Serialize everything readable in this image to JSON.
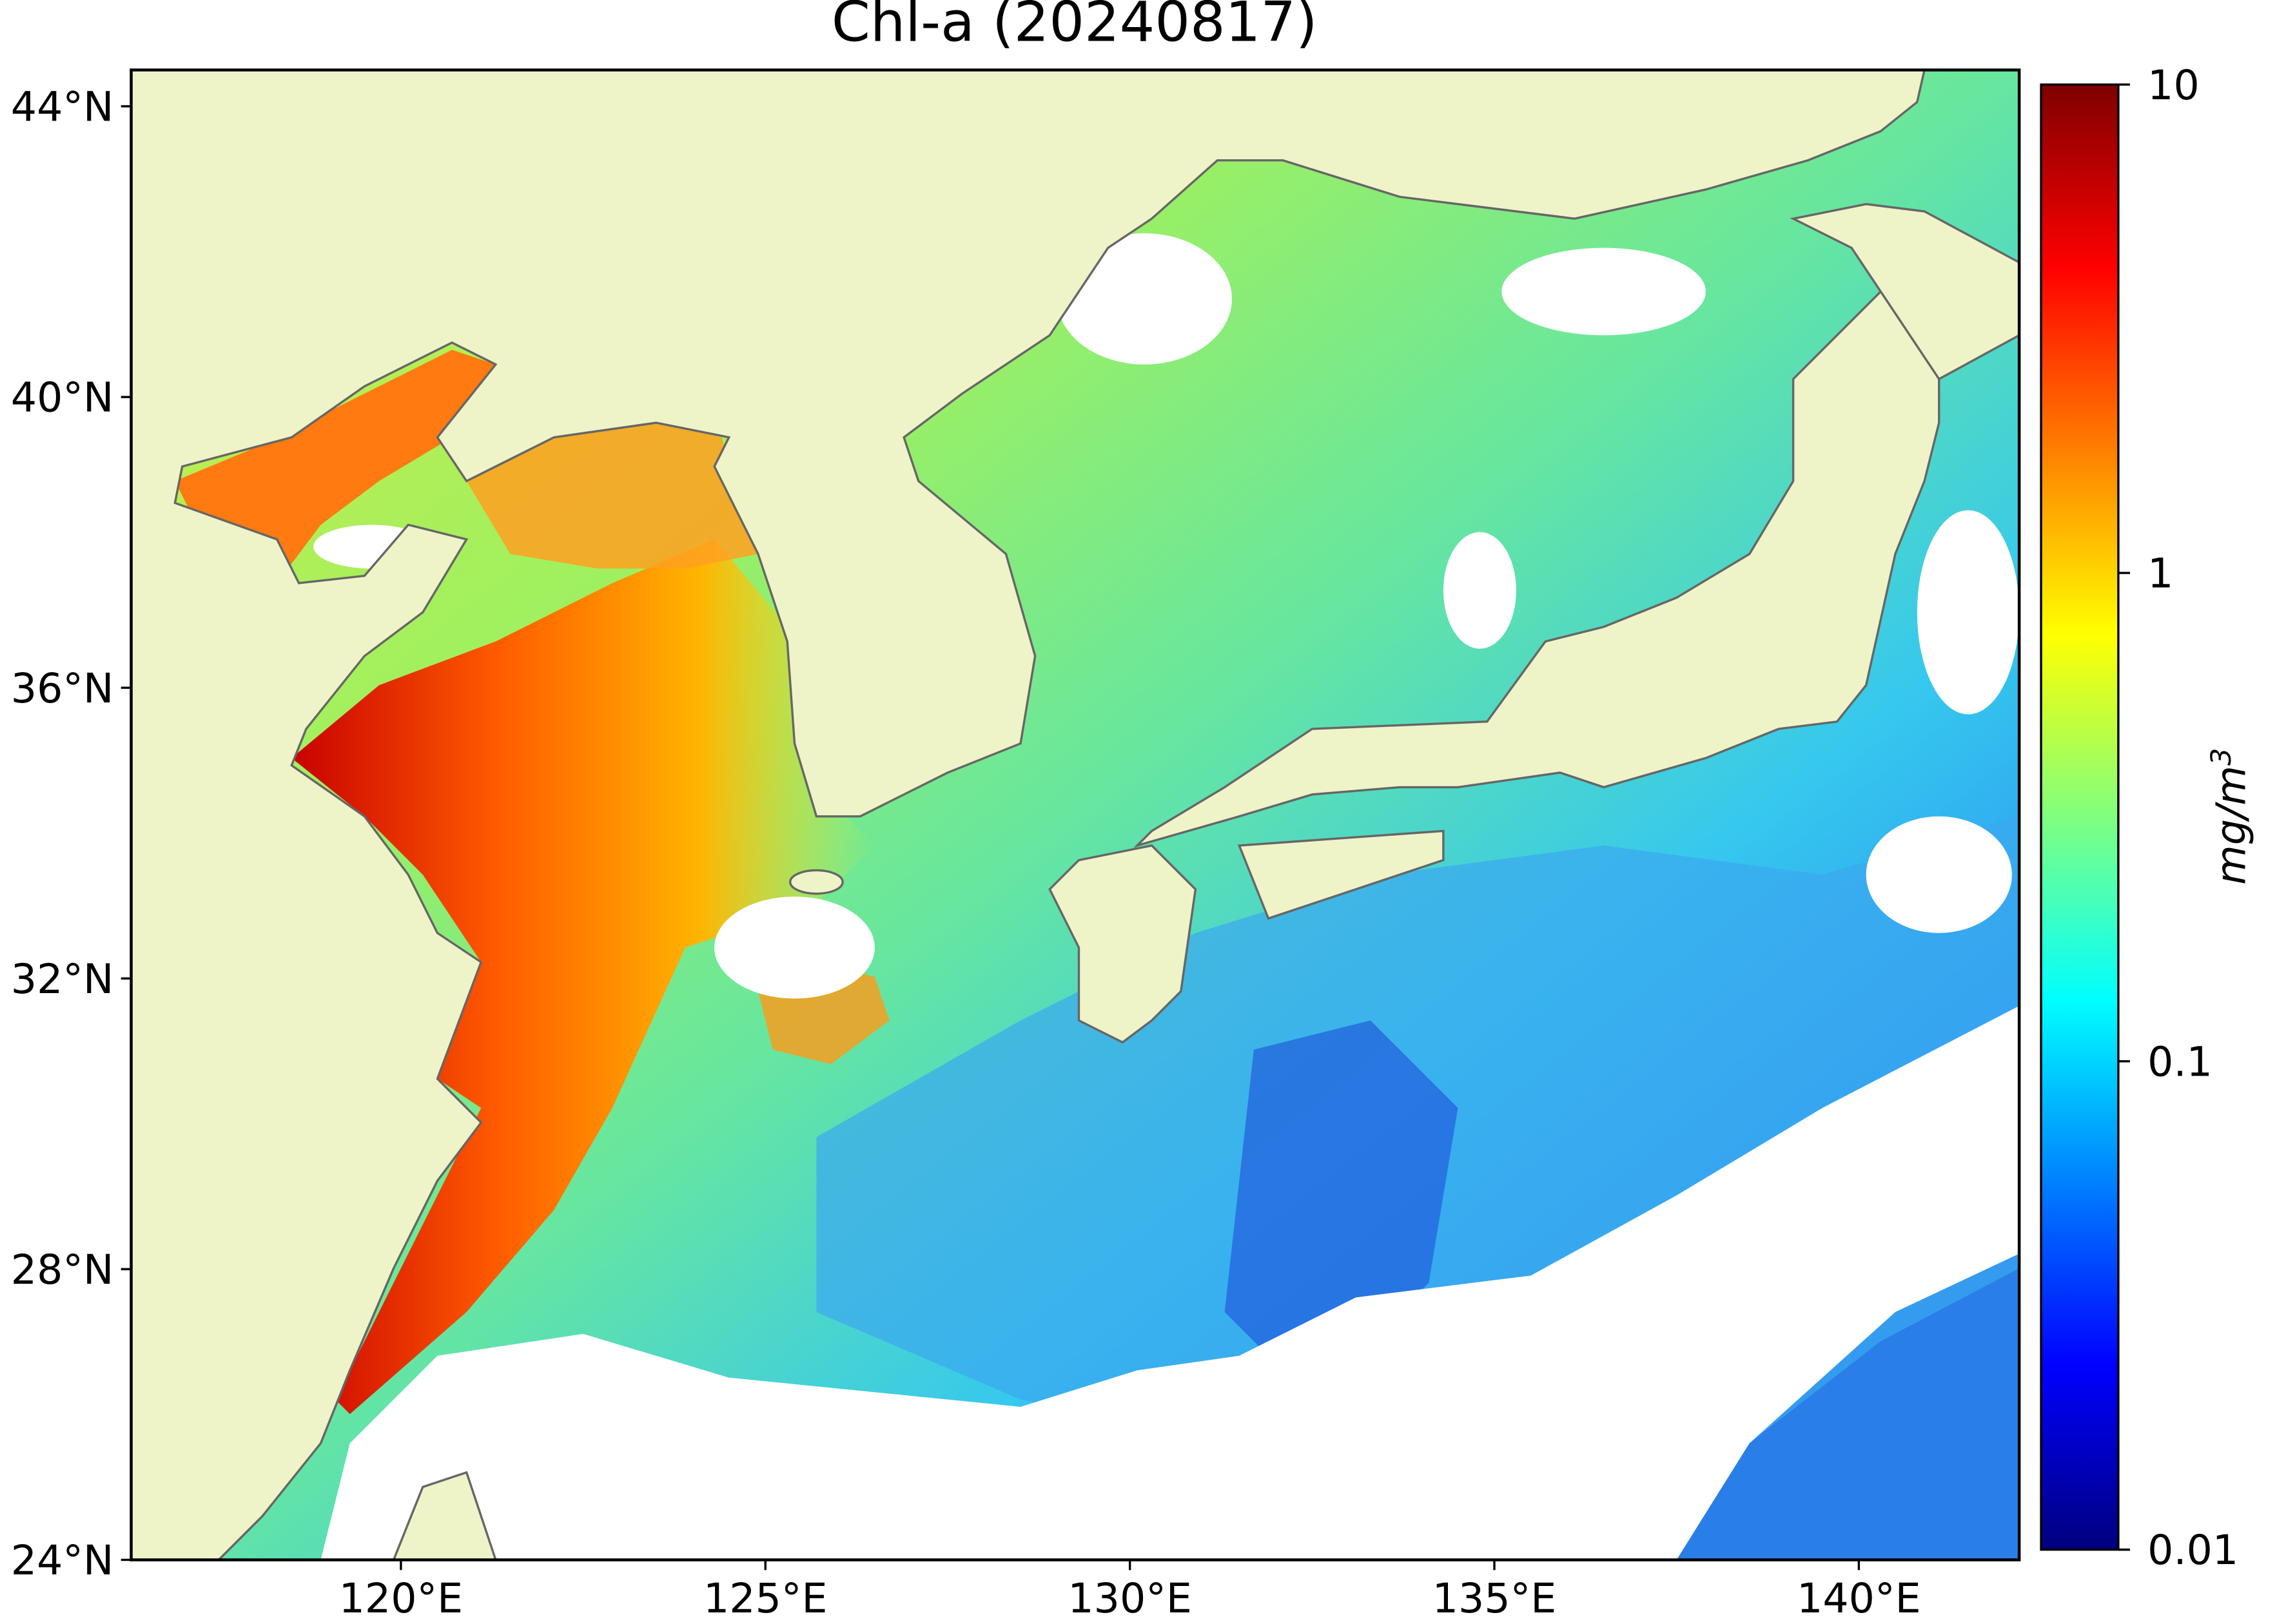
{
  "chart_data": {
    "type": "map",
    "title": "Chl-a (20240817)",
    "xlim": [
      116.3,
      142.2
    ],
    "ylim": [
      24,
      44.5
    ],
    "xticks": [
      {
        "value": 120,
        "label": "120°E"
      },
      {
        "value": 125,
        "label": "125°E"
      },
      {
        "value": 130,
        "label": "130°E"
      },
      {
        "value": 135,
        "label": "135°E"
      },
      {
        "value": 140,
        "label": "140°E"
      }
    ],
    "yticks": [
      {
        "value": 24,
        "label": "24°N"
      },
      {
        "value": 28,
        "label": "28°N"
      },
      {
        "value": 32,
        "label": "32°N"
      },
      {
        "value": 36,
        "label": "36°N"
      },
      {
        "value": 40,
        "label": "40°N"
      },
      {
        "value": 44,
        "label": "44°N"
      }
    ],
    "colorbar": {
      "scale": "log",
      "lim": [
        0.01,
        10
      ],
      "ticks": [
        0.01,
        0.1,
        1,
        10
      ],
      "label": {
        "base": "mg/m",
        "sup": "3"
      }
    }
  }
}
